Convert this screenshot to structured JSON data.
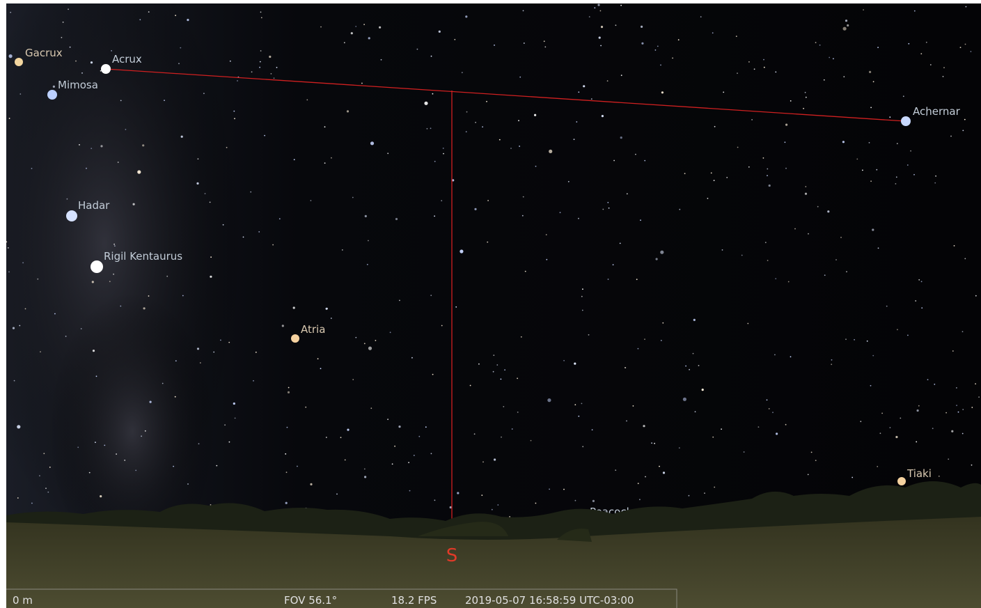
{
  "sky_labels": [
    "Gacrux",
    "Acrux",
    "Mimosa",
    "Hadar",
    "Rigil Kentaurus",
    "Atria",
    "Achernar",
    "Peacock",
    "Tiaki"
  ],
  "cardinal": "S",
  "status_bar": {
    "altitude": "0 m",
    "fov": "FOV 56.1°",
    "fps": "18.2 FPS",
    "datetime": "2019-05-07 16:58:59 UTC-03:00"
  }
}
